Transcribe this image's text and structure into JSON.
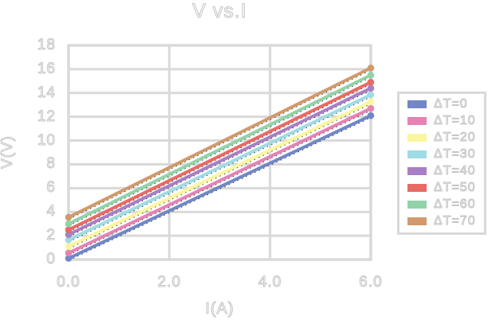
{
  "chart_data": {
    "type": "line",
    "title": "V vs.I",
    "xlabel": "I(A)",
    "ylabel": "V(V)",
    "xlim": [
      0,
      6
    ],
    "ylim": [
      0,
      18
    ],
    "x_tick_values": [
      0,
      2,
      4,
      6
    ],
    "x_tick_labels": [
      "0.0",
      "2.0",
      "4.0",
      "6.0"
    ],
    "y_tick_values": [
      0,
      2,
      4,
      6,
      8,
      10,
      12,
      14,
      16,
      18
    ],
    "y_tick_labels": [
      "0",
      "2",
      "4",
      "6",
      "8",
      "10",
      "12",
      "14",
      "16",
      "18"
    ],
    "grid": "on",
    "legend_position": "outside-right",
    "marker": "circle-endpoints",
    "underlay_line_style": "black-dotted",
    "x": [
      0,
      6
    ],
    "series": [
      {
        "name": "ΔT=0",
        "color": "#7187c6",
        "values": [
          0.1,
          12.1
        ]
      },
      {
        "name": "ΔT=10",
        "color": "#e682b4",
        "values": [
          0.55,
          12.7
        ]
      },
      {
        "name": "ΔT=20",
        "color": "#faf69e",
        "values": [
          1.1,
          13.25
        ]
      },
      {
        "name": "ΔT=30",
        "color": "#9fdbe5",
        "values": [
          1.65,
          13.85
        ]
      },
      {
        "name": "ΔT=40",
        "color": "#a87fc4",
        "values": [
          2.1,
          14.4
        ]
      },
      {
        "name": "ΔT=50",
        "color": "#e96a64",
        "values": [
          2.5,
          14.9
        ]
      },
      {
        "name": "ΔT=60",
        "color": "#90d3a8",
        "values": [
          3.0,
          15.5
        ]
      },
      {
        "name": "ΔT=70",
        "color": "#d2996b",
        "values": [
          3.55,
          16.1
        ]
      }
    ]
  },
  "styles": {
    "grid_color": "#d9d9d9",
    "text_outline_color": "#c6c6c6",
    "dotted_underlay_color": "#2a2a2a",
    "background": "#ffffff"
  }
}
